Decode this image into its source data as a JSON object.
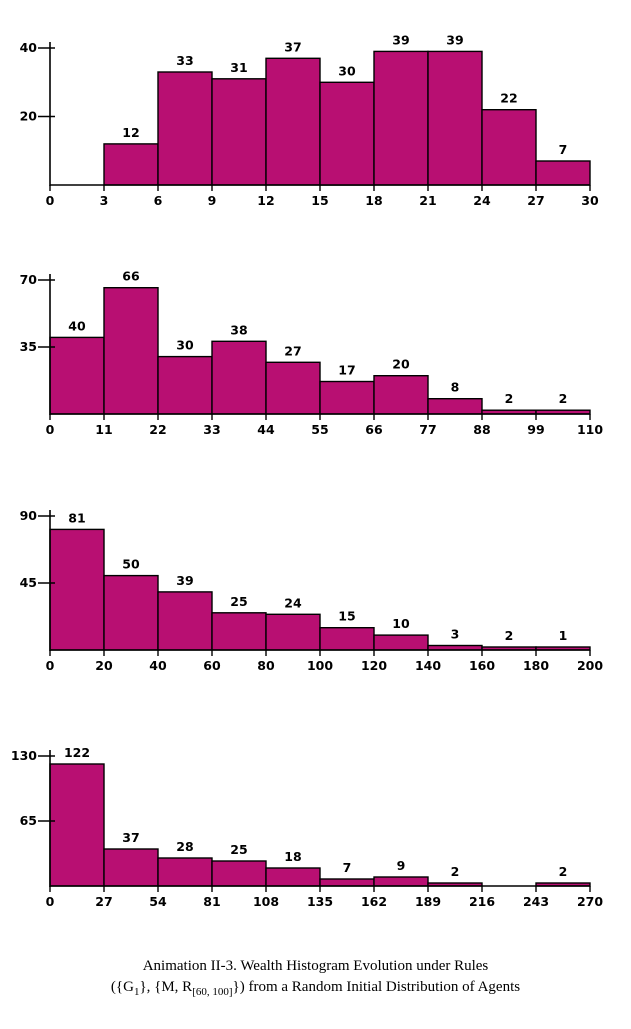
{
  "chart_data": [
    {
      "type": "bar",
      "bar_color": "#b80f72",
      "x_ticks": [
        "0",
        "3",
        "6",
        "9",
        "12",
        "15",
        "18",
        "21",
        "24",
        "27",
        "30"
      ],
      "y_ticks": [
        "20",
        "40"
      ],
      "ylim": [
        0,
        40
      ],
      "bins": [
        [
          0,
          3
        ],
        [
          3,
          6
        ],
        [
          6,
          9
        ],
        [
          9,
          12
        ],
        [
          12,
          15
        ],
        [
          15,
          18
        ],
        [
          18,
          21
        ],
        [
          21,
          24
        ],
        [
          24,
          27
        ],
        [
          27,
          30
        ]
      ],
      "values": [
        0,
        12,
        33,
        31,
        37,
        30,
        39,
        39,
        22,
        7
      ],
      "labels": [
        "",
        "12",
        "33",
        "31",
        "37",
        "30",
        "39",
        "39",
        "22",
        "7"
      ]
    },
    {
      "type": "bar",
      "bar_color": "#b80f72",
      "x_ticks": [
        "0",
        "11",
        "22",
        "33",
        "44",
        "55",
        "66",
        "77",
        "88",
        "99",
        "110"
      ],
      "y_ticks": [
        "35",
        "70"
      ],
      "ylim": [
        0,
        70
      ],
      "values": [
        40,
        66,
        30,
        38,
        27,
        17,
        20,
        8,
        2,
        2
      ],
      "labels": [
        "40",
        "66",
        "30",
        "38",
        "27",
        "17",
        "20",
        "8",
        "2",
        "2"
      ]
    },
    {
      "type": "bar",
      "bar_color": "#b80f72",
      "x_ticks": [
        "0",
        "20",
        "40",
        "60",
        "80",
        "100",
        "120",
        "140",
        "160",
        "180",
        "200"
      ],
      "y_ticks": [
        "45",
        "90"
      ],
      "ylim": [
        0,
        90
      ],
      "values": [
        81,
        50,
        39,
        25,
        24,
        15,
        10,
        3,
        2,
        1
      ],
      "labels": [
        "81",
        "50",
        "39",
        "25",
        "24",
        "15",
        "10",
        "3",
        "2",
        "1"
      ]
    },
    {
      "type": "bar",
      "bar_color": "#b80f72",
      "x_ticks": [
        "0",
        "27",
        "54",
        "81",
        "108",
        "135",
        "162",
        "189",
        "216",
        "243",
        "270"
      ],
      "y_ticks": [
        "65",
        "130"
      ],
      "ylim": [
        0,
        130
      ],
      "values": [
        122,
        37,
        28,
        25,
        18,
        7,
        9,
        2,
        0,
        2
      ],
      "labels": [
        "122",
        "37",
        "28",
        "25",
        "18",
        "7",
        "9",
        "2",
        "",
        "2"
      ]
    }
  ],
  "caption": {
    "line1": "Animation II-3. Wealth Histogram Evolution under Rules",
    "line2_part1": "({G",
    "line2_sub1": "1",
    "line2_part2": "}, {M, R",
    "line2_sub2": "[60, 100]",
    "line2_part3": "}) from a Random Initial Distribution of Agents"
  }
}
